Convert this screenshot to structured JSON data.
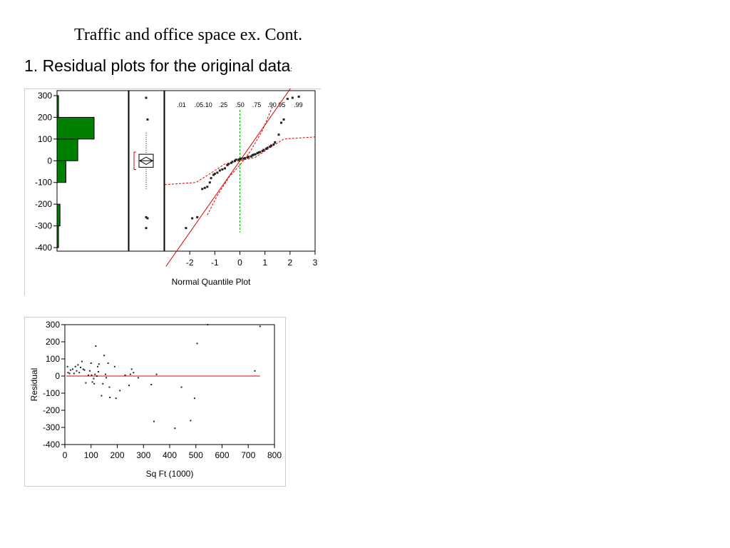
{
  "slide": {
    "title": "Traffic and office space ex. Cont.",
    "subtitle": "1. Residual plots for the original data",
    "subtitle_tail": ":"
  },
  "colors": {
    "histogram_fill": "#008000",
    "fit_line": "#e00000",
    "confidence_band": "#e00000",
    "median_reference": "#00b000",
    "points": "#222222"
  },
  "chart_data": [
    {
      "type": "bar",
      "orientation": "horizontal",
      "description_of_panel": "histogram",
      "bin_edges": [
        -400,
        -300,
        -200,
        -100,
        0,
        100,
        200,
        300
      ],
      "counts": [
        1,
        2,
        0,
        6,
        14,
        25,
        1
      ],
      "yticks": [
        300,
        200,
        100,
        0,
        -100,
        -200,
        -300,
        -400
      ],
      "ylim": [
        -400,
        300
      ]
    },
    {
      "type": "scatter",
      "description_of_panel": "outlier box plot",
      "quartiles": [
        -30,
        0,
        30
      ],
      "whiskers": [
        -130,
        130
      ],
      "bracket": [
        -40,
        40
      ],
      "outliers": [
        290,
        190,
        -260,
        -265,
        -310
      ]
    },
    {
      "type": "scatter",
      "title": "Normal Quantile Plot",
      "top_ticks": [
        {
          "label": ".01",
          "z": -2.33
        },
        {
          "label": ".05",
          "z": -1.64
        },
        {
          "label": ".10",
          "z": -1.28
        },
        {
          "label": ".25",
          "z": -0.67
        },
        {
          "label": ".50",
          "z": 0
        },
        {
          "label": ".75",
          "z": 0.67
        },
        {
          "label": ".90",
          "z": 1.28
        },
        {
          "label": ".95",
          "z": 1.64
        },
        {
          "label": ".99",
          "z": 2.33
        }
      ],
      "xticks": [
        -2,
        -1,
        0,
        1,
        2,
        3
      ],
      "xlim": [
        -3,
        3
      ],
      "ylim": [
        -400,
        300
      ],
      "points": [
        [
          -2.15,
          -310
        ],
        [
          -1.9,
          -265
        ],
        [
          -1.7,
          -260
        ],
        [
          -1.5,
          -130
        ],
        [
          -1.4,
          -125
        ],
        [
          -1.3,
          -120
        ],
        [
          -1.2,
          -100
        ],
        [
          -1.15,
          -80
        ],
        [
          -1.05,
          -65
        ],
        [
          -1.0,
          -60
        ],
        [
          -0.9,
          -55
        ],
        [
          -0.8,
          -45
        ],
        [
          -0.7,
          -40
        ],
        [
          -0.6,
          -35
        ],
        [
          -0.5,
          -20
        ],
        [
          -0.45,
          -15
        ],
        [
          -0.35,
          -10
        ],
        [
          -0.3,
          -5
        ],
        [
          -0.2,
          0
        ],
        [
          -0.15,
          5
        ],
        [
          -0.05,
          5
        ],
        [
          0.0,
          8
        ],
        [
          0.05,
          10
        ],
        [
          0.15,
          10
        ],
        [
          0.2,
          12
        ],
        [
          0.3,
          15
        ],
        [
          0.35,
          18
        ],
        [
          0.45,
          20
        ],
        [
          0.5,
          25
        ],
        [
          0.55,
          28
        ],
        [
          0.62,
          30
        ],
        [
          0.7,
          35
        ],
        [
          0.75,
          38
        ],
        [
          0.8,
          40
        ],
        [
          0.9,
          45
        ],
        [
          0.95,
          50
        ],
        [
          1.05,
          55
        ],
        [
          1.1,
          60
        ],
        [
          1.2,
          65
        ],
        [
          1.25,
          70
        ],
        [
          1.35,
          75
        ],
        [
          1.4,
          85
        ],
        [
          1.55,
          120
        ],
        [
          1.65,
          175
        ],
        [
          1.75,
          190
        ],
        [
          1.9,
          285
        ],
        [
          2.1,
          290
        ],
        [
          2.35,
          295
        ]
      ],
      "fit_line": {
        "intercept": 0,
        "slope": 165
      },
      "band_points": [
        [
          [
            -3,
            -110
          ],
          [
            -1.75,
            -100
          ],
          [
            -1.2,
            -60
          ],
          [
            -0.6,
            -15
          ],
          [
            0,
            0
          ],
          [
            0.6,
            15
          ],
          [
            1.2,
            60
          ],
          [
            1.75,
            100
          ],
          [
            3,
            110
          ]
        ],
        [
          [
            -1.3,
            -250
          ],
          [
            -0.9,
            -160
          ],
          [
            -0.4,
            -70
          ],
          [
            0,
            -20
          ],
          [
            0.4,
            40
          ],
          [
            0.9,
            140
          ],
          [
            1.3,
            250
          ]
        ]
      ]
    },
    {
      "type": "scatter",
      "xlabel": "Sq Ft (1000)",
      "ylabel": "Residual",
      "xticks": [
        0,
        100,
        200,
        300,
        400,
        500,
        600,
        700,
        800
      ],
      "yticks": [
        300,
        200,
        100,
        0,
        -100,
        -200,
        -300,
        -400
      ],
      "xlim": [
        0,
        800
      ],
      "ylim": [
        -400,
        300
      ],
      "reference_line": 0,
      "points": [
        [
          10,
          55
        ],
        [
          12,
          20
        ],
        [
          18,
          15
        ],
        [
          22,
          35
        ],
        [
          30,
          40
        ],
        [
          35,
          15
        ],
        [
          40,
          55
        ],
        [
          45,
          30
        ],
        [
          50,
          65
        ],
        [
          55,
          20
        ],
        [
          60,
          50
        ],
        [
          65,
          85
        ],
        [
          70,
          40
        ],
        [
          75,
          35
        ],
        [
          80,
          -40
        ],
        [
          90,
          5
        ],
        [
          95,
          30
        ],
        [
          100,
          75
        ],
        [
          102,
          5
        ],
        [
          105,
          -35
        ],
        [
          110,
          -15
        ],
        [
          112,
          -45
        ],
        [
          115,
          10
        ],
        [
          118,
          175
        ],
        [
          122,
          0
        ],
        [
          125,
          55
        ],
        [
          128,
          25
        ],
        [
          130,
          70
        ],
        [
          140,
          -115
        ],
        [
          145,
          -45
        ],
        [
          150,
          120
        ],
        [
          155,
          10
        ],
        [
          158,
          -10
        ],
        [
          165,
          75
        ],
        [
          170,
          -65
        ],
        [
          172,
          -125
        ],
        [
          190,
          55
        ],
        [
          195,
          -130
        ],
        [
          210,
          -85
        ],
        [
          230,
          5
        ],
        [
          245,
          -55
        ],
        [
          250,
          10
        ],
        [
          255,
          40
        ],
        [
          262,
          20
        ],
        [
          280,
          -10
        ],
        [
          330,
          -50
        ],
        [
          340,
          -265
        ],
        [
          350,
          10
        ],
        [
          420,
          -305
        ],
        [
          445,
          -65
        ],
        [
          480,
          -260
        ],
        [
          495,
          -130
        ],
        [
          505,
          190
        ],
        [
          545,
          300
        ],
        [
          725,
          30
        ],
        [
          745,
          290
        ]
      ]
    }
  ]
}
